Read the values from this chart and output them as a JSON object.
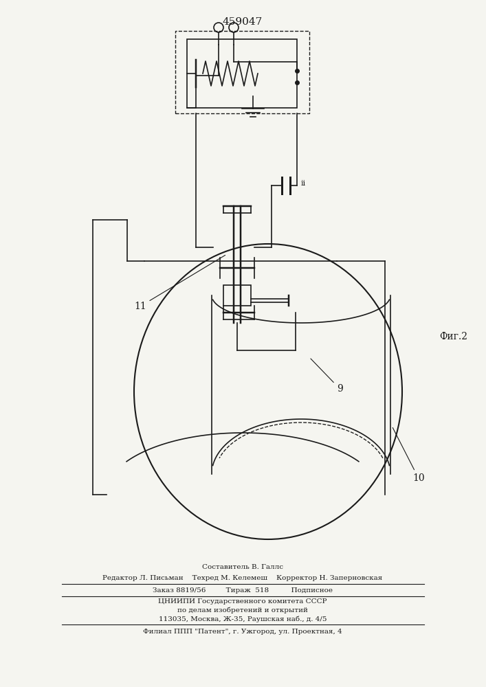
{
  "patent_number": "459047",
  "fig_label": "Фиг.2",
  "label_11": "11",
  "label_9": "9",
  "label_10": "10",
  "bg_color": "#f5f5f0",
  "line_color": "#1a1a1a",
  "footer_lines": [
    "Составитель В. Галлс",
    "Редактор Л. Письман    Техред М. Келемеш    Корректор Н. Заперновская",
    "Заказ 8819/56         Тираж  518          Подписное",
    "ЦНИИПИ Государственного комитета СССР",
    "по делам изобретений и открытий",
    "113035, Москва, Ж-35, Раушская наб., д. 4/5",
    "Филиал ППП \"Патент\", г. Ужгород, ул. Проектная, 4"
  ]
}
